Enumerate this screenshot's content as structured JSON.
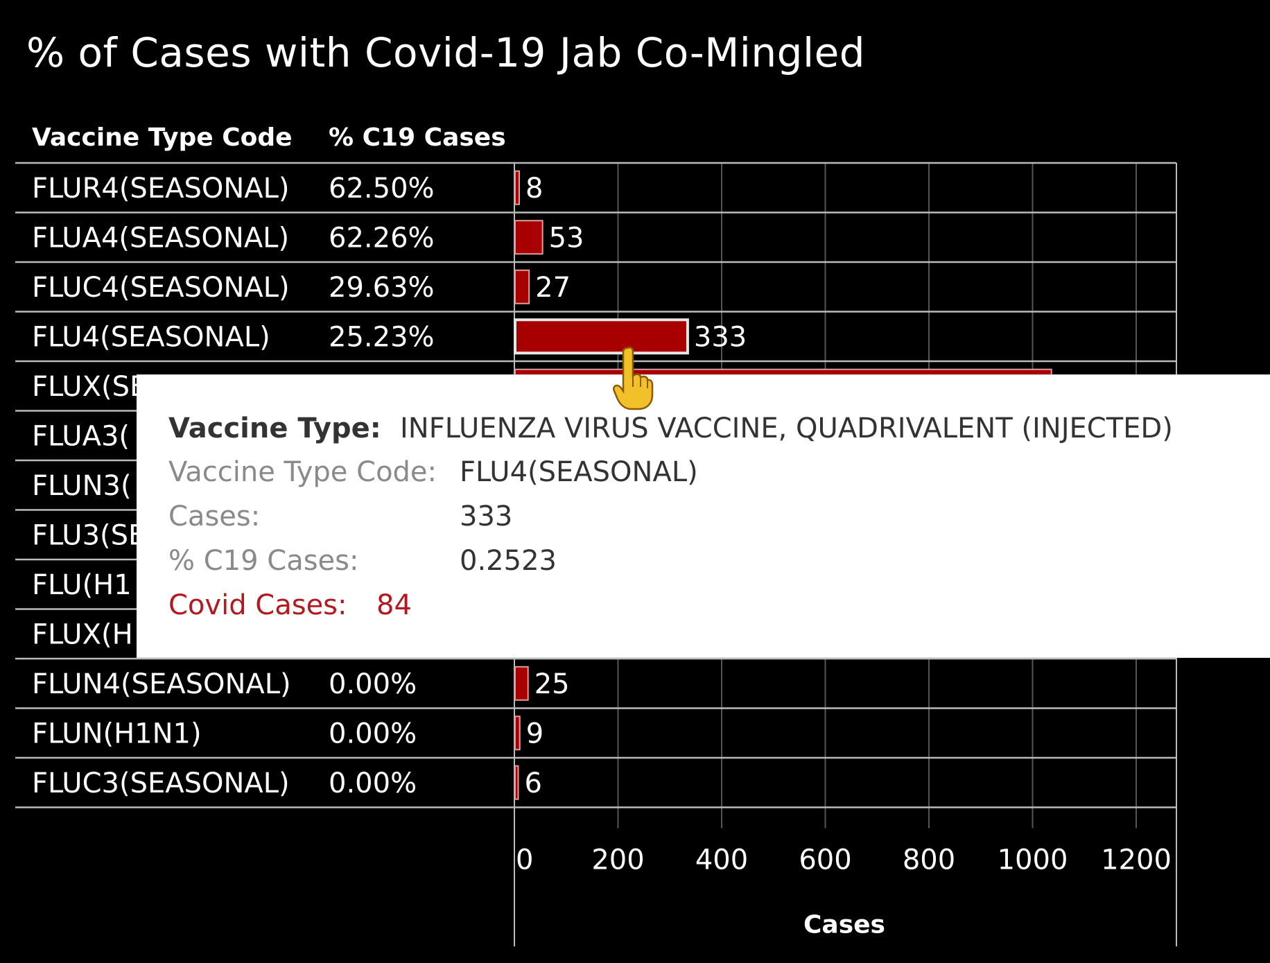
{
  "chart_data": {
    "type": "bar",
    "title": "% of Cases with Covid-19 Jab Co-Mingled",
    "columns": {
      "code": "Vaccine Type Code",
      "pct": "% C19 Cases"
    },
    "xlabel": "Cases",
    "xlim": [
      0,
      1280
    ],
    "xticks": [
      0,
      200,
      400,
      600,
      800,
      1000,
      1200
    ],
    "grid": true,
    "bar_color": "#a80000",
    "rows": [
      {
        "code": "FLUR4(SEASONAL)",
        "pct": "62.50%",
        "value": 8,
        "label": "8"
      },
      {
        "code": "FLUA4(SEASONAL)",
        "pct": "62.26%",
        "value": 53,
        "label": "53"
      },
      {
        "code": "FLUC4(SEASONAL)",
        "pct": "29.63%",
        "value": 27,
        "label": "27"
      },
      {
        "code": "FLU4(SEASONAL)",
        "pct": "25.23%",
        "value": 333,
        "label": "333"
      },
      {
        "code": "FLUX(SE",
        "pct": "",
        "value": 1035,
        "label": ""
      },
      {
        "code": "FLUA3(",
        "pct": "",
        "value": null,
        "label": ""
      },
      {
        "code": "FLUN3(",
        "pct": "",
        "value": null,
        "label": ""
      },
      {
        "code": "FLU3(SE",
        "pct": "",
        "value": null,
        "label": ""
      },
      {
        "code": "FLU(H1",
        "pct": "",
        "value": null,
        "label": ""
      },
      {
        "code": "FLUX(H",
        "pct": "",
        "value": null,
        "label": ""
      },
      {
        "code": "FLUN4(SEASONAL)",
        "pct": "0.00%",
        "value": 25,
        "label": "25"
      },
      {
        "code": "FLUN(H1N1)",
        "pct": "0.00%",
        "value": 9,
        "label": "9"
      },
      {
        "code": "FLUC3(SEASONAL)",
        "pct": "0.00%",
        "value": 6,
        "label": "6"
      }
    ]
  },
  "tooltip": {
    "type_key": "Vaccine Type:",
    "type_val": "INFLUENZA VIRUS VACCINE, QUADRIVALENT (INJECTED)",
    "code_key": "Vaccine Type Code:",
    "code_val": "FLU4(SEASONAL)",
    "cases_key": "Cases:",
    "cases_val": "333",
    "pct_key": "% C19 Cases:",
    "pct_val": "0.2523",
    "covid_key": "Covid Cases:",
    "covid_val": "84",
    "accent": "#b3191f"
  },
  "cursor_icon": "pointing-hand-icon"
}
